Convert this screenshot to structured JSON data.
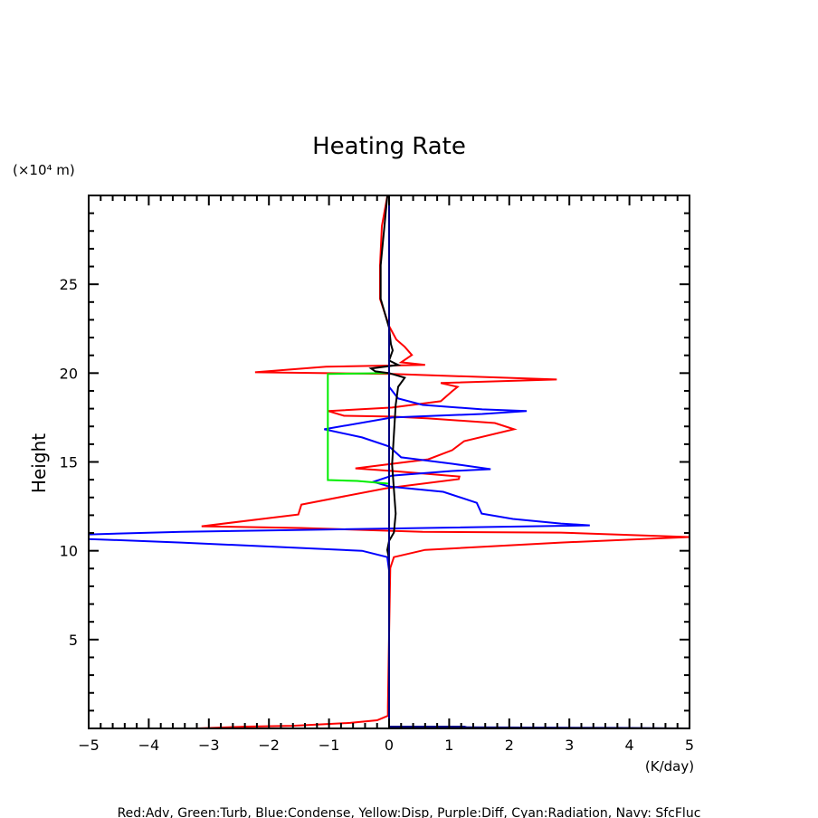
{
  "chart_data": {
    "type": "line",
    "title": "Heating Rate",
    "xlabel": "(K/day)",
    "ylabel": "Height",
    "yunit": "(×10⁴ m)",
    "xlim": [
      -5,
      5
    ],
    "ylim": [
      0,
      30
    ],
    "x_ticks": [
      -5,
      -4,
      -3,
      -2,
      -1,
      0,
      1,
      2,
      3,
      4,
      5
    ],
    "x_tick_labels": [
      "−5",
      "−4",
      "−3",
      "−2",
      "−1",
      "0",
      "1",
      "2",
      "3",
      "4",
      "5"
    ],
    "y_ticks": [
      5,
      10,
      15,
      20,
      25
    ],
    "y_tick_labels": [
      "5",
      "10",
      "15",
      "20",
      "25"
    ],
    "grid": false,
    "legend_text": "Red:Adv, Green:Turb, Blue:Condense, Yellow:Disp, Purple:Diff, Cyan:Radiation, Navy: SfcFluc",
    "series": [
      {
        "name": "Adv",
        "color": "#ff0000",
        "points": [
          [
            -0.03,
            29.95
          ],
          [
            -0.12,
            28.27
          ],
          [
            -0.15,
            26.07
          ],
          [
            -0.15,
            24.18
          ],
          [
            0,
            22.65
          ],
          [
            0.12,
            21.89
          ],
          [
            0.26,
            21.48
          ],
          [
            0.38,
            21.02
          ],
          [
            0.2,
            20.61
          ],
          [
            0.6,
            20.46
          ],
          [
            -1.05,
            20.36
          ],
          [
            -2.23,
            20.05
          ],
          [
            0.05,
            19.95
          ],
          [
            2.79,
            19.64
          ],
          [
            0.86,
            19.44
          ],
          [
            1.14,
            19.23
          ],
          [
            1.05,
            18.98
          ],
          [
            0.86,
            18.42
          ],
          [
            0.05,
            18.06
          ],
          [
            -1.01,
            17.86
          ],
          [
            -0.75,
            17.6
          ],
          [
            0.05,
            17.55
          ],
          [
            0.65,
            17.45
          ],
          [
            1.76,
            17.19
          ],
          [
            2.08,
            16.84
          ],
          [
            1.25,
            16.17
          ],
          [
            1.05,
            15.66
          ],
          [
            0.65,
            15.15
          ],
          [
            -0.56,
            14.64
          ],
          [
            0.05,
            14.49
          ],
          [
            1.17,
            14.18
          ],
          [
            1.16,
            14.03
          ],
          [
            -0.05,
            13.52
          ],
          [
            -1.46,
            12.6
          ],
          [
            -1.51,
            12.04
          ],
          [
            -3.12,
            11.38
          ],
          [
            -1.46,
            11.28
          ],
          [
            0.56,
            11.07
          ],
          [
            2.86,
            11.02
          ],
          [
            5.0,
            10.77
          ],
          [
            2.86,
            10.46
          ],
          [
            0.6,
            10.05
          ],
          [
            0.08,
            9.64
          ],
          [
            0.02,
            9.03
          ],
          [
            0,
            5.3
          ],
          [
            -0.02,
            1.22
          ],
          [
            -0.02,
            0.71
          ],
          [
            -0.2,
            0.46
          ],
          [
            -0.65,
            0.31
          ],
          [
            -1.61,
            0.15
          ],
          [
            -2.38,
            0.1
          ],
          [
            -3.2,
            0
          ]
        ]
      },
      {
        "name": "Condense",
        "color": "#0000ff",
        "points": [
          [
            0,
            19.23
          ],
          [
            0.15,
            18.57
          ],
          [
            0.56,
            18.21
          ],
          [
            1.55,
            17.96
          ],
          [
            2.29,
            17.86
          ],
          [
            1.55,
            17.7
          ],
          [
            0.05,
            17.5
          ],
          [
            -1.08,
            16.84
          ],
          [
            -0.45,
            16.38
          ],
          [
            0,
            15.87
          ],
          [
            0.2,
            15.26
          ],
          [
            1.05,
            14.9
          ],
          [
            1.69,
            14.59
          ],
          [
            1.05,
            14.49
          ],
          [
            0.05,
            14.23
          ],
          [
            -0.26,
            13.88
          ],
          [
            0,
            13.62
          ],
          [
            0.9,
            13.32
          ],
          [
            1.46,
            12.7
          ],
          [
            1.54,
            12.09
          ],
          [
            2.06,
            11.79
          ],
          [
            2.86,
            11.53
          ],
          [
            3.34,
            11.43
          ],
          [
            -3.46,
            11.07
          ],
          [
            -5.0,
            10.92
          ],
          [
            -5.4,
            10.8
          ],
          [
            -5.0,
            10.66
          ],
          [
            -3.46,
            10.46
          ],
          [
            -0.45,
            10.0
          ],
          [
            -0.03,
            9.64
          ],
          [
            0,
            8.88
          ],
          [
            0,
            0
          ]
        ]
      },
      {
        "name": "Turb",
        "color": "#00ee00",
        "points": [
          [
            0,
            20.0
          ],
          [
            -1.02,
            19.95
          ],
          [
            -1.02,
            13.98
          ],
          [
            -0.53,
            13.93
          ],
          [
            -0.25,
            13.85
          ],
          [
            0,
            13.78
          ]
        ]
      },
      {
        "name": "Black",
        "color": "#000000",
        "points": [
          [
            -0.03,
            29.95
          ],
          [
            -0.14,
            26.07
          ],
          [
            -0.14,
            24.18
          ],
          [
            0,
            22.55
          ],
          [
            0.03,
            21.63
          ],
          [
            0.06,
            21.28
          ],
          [
            0,
            20.71
          ],
          [
            0.15,
            20.46
          ],
          [
            -0.3,
            20.26
          ],
          [
            -0.23,
            20.1
          ],
          [
            0,
            20.0
          ],
          [
            0.26,
            19.74
          ],
          [
            0.15,
            19.23
          ],
          [
            0.11,
            18.21
          ],
          [
            0.08,
            16.53
          ],
          [
            0.05,
            14.85
          ],
          [
            0.11,
            12.09
          ],
          [
            0.08,
            11.02
          ],
          [
            0,
            10.56
          ],
          [
            -0.03,
            10.05
          ],
          [
            0,
            9.54
          ],
          [
            0,
            0
          ]
        ]
      },
      {
        "name": "SfcFluc",
        "color": "#000080",
        "points": [
          [
            0,
            30
          ],
          [
            0,
            0.1
          ],
          [
            1.25,
            0.1
          ],
          [
            1.3,
            0.06
          ],
          [
            3.8,
            0.03
          ],
          [
            5,
            0
          ]
        ]
      }
    ]
  }
}
